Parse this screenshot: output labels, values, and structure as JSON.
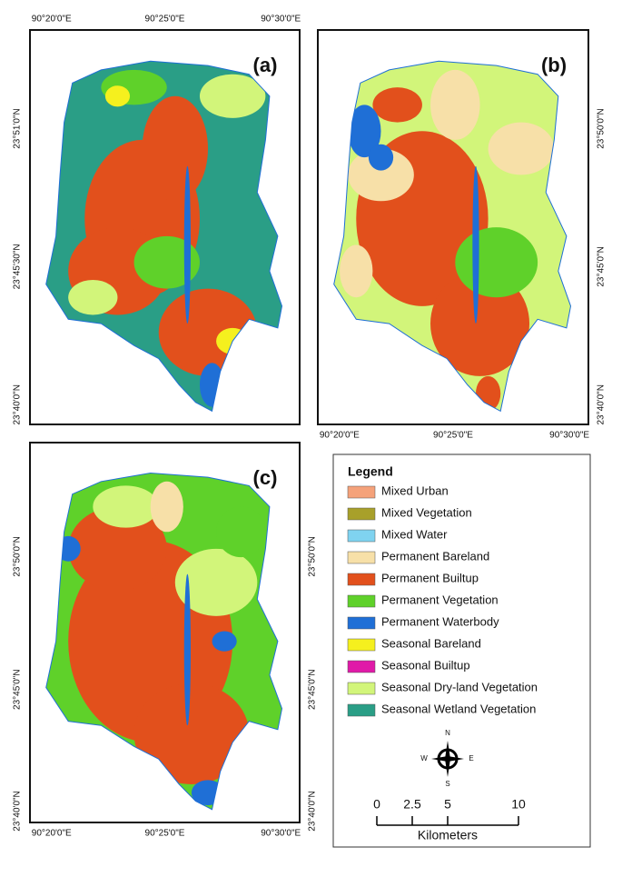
{
  "panels": [
    {
      "label": "(a)",
      "top": [
        "90°20'0\"E",
        "90°25'0\"E",
        "90°30'0\"E"
      ],
      "left": [
        "23°51'0\"N",
        "23°45'30\"N",
        "23°40'0\"N"
      ]
    },
    {
      "label": "(b)",
      "bottom": [
        "90°20'0\"E",
        "90°25'0\"E",
        "90°30'0\"E"
      ],
      "right": [
        "23°50'0\"N",
        "23°45'0\"N",
        "23°40'0\"N"
      ]
    },
    {
      "label": "(c)",
      "bottom": [
        "90°20'0\"E",
        "90°25'0\"E",
        "90°30'0\"E"
      ],
      "left": [
        "23°50'0\"N",
        "23°45'0\"N",
        "23°40'0\"N"
      ],
      "right": [
        "23°50'0\"N",
        "23°45'0\"N",
        "23°40'0\"N"
      ]
    }
  ],
  "legend": {
    "title": "Legend",
    "items": [
      {
        "label": "Mixed Urban",
        "color": "#f5a27a"
      },
      {
        "label": "Mixed Vegetation",
        "color": "#a8a02a"
      },
      {
        "label": "Mixed Water",
        "color": "#7fd3f0"
      },
      {
        "label": "Permanent Bareland",
        "color": "#f7e0a8"
      },
      {
        "label": "Permanent Builtup",
        "color": "#e2501c"
      },
      {
        "label": "Permanent Vegetation",
        "color": "#5fd12a"
      },
      {
        "label": "Permanent Waterbody",
        "color": "#1f6fd6"
      },
      {
        "label": "Seasonal Bareland",
        "color": "#f5f01e"
      },
      {
        "label": "Seasonal Builtup",
        "color": "#e01aa8"
      },
      {
        "label": "Seasonal Dry-land Vegetation",
        "color": "#d2f57a"
      },
      {
        "label": "Seasonal Wetland Vegetation",
        "color": "#2a9e86"
      }
    ]
  },
  "compass": {
    "north": "N",
    "east": "E",
    "south": "S",
    "west": "W"
  },
  "scale": {
    "ticks": [
      0,
      2.5,
      5,
      10
    ],
    "unit": "Kilometers"
  }
}
